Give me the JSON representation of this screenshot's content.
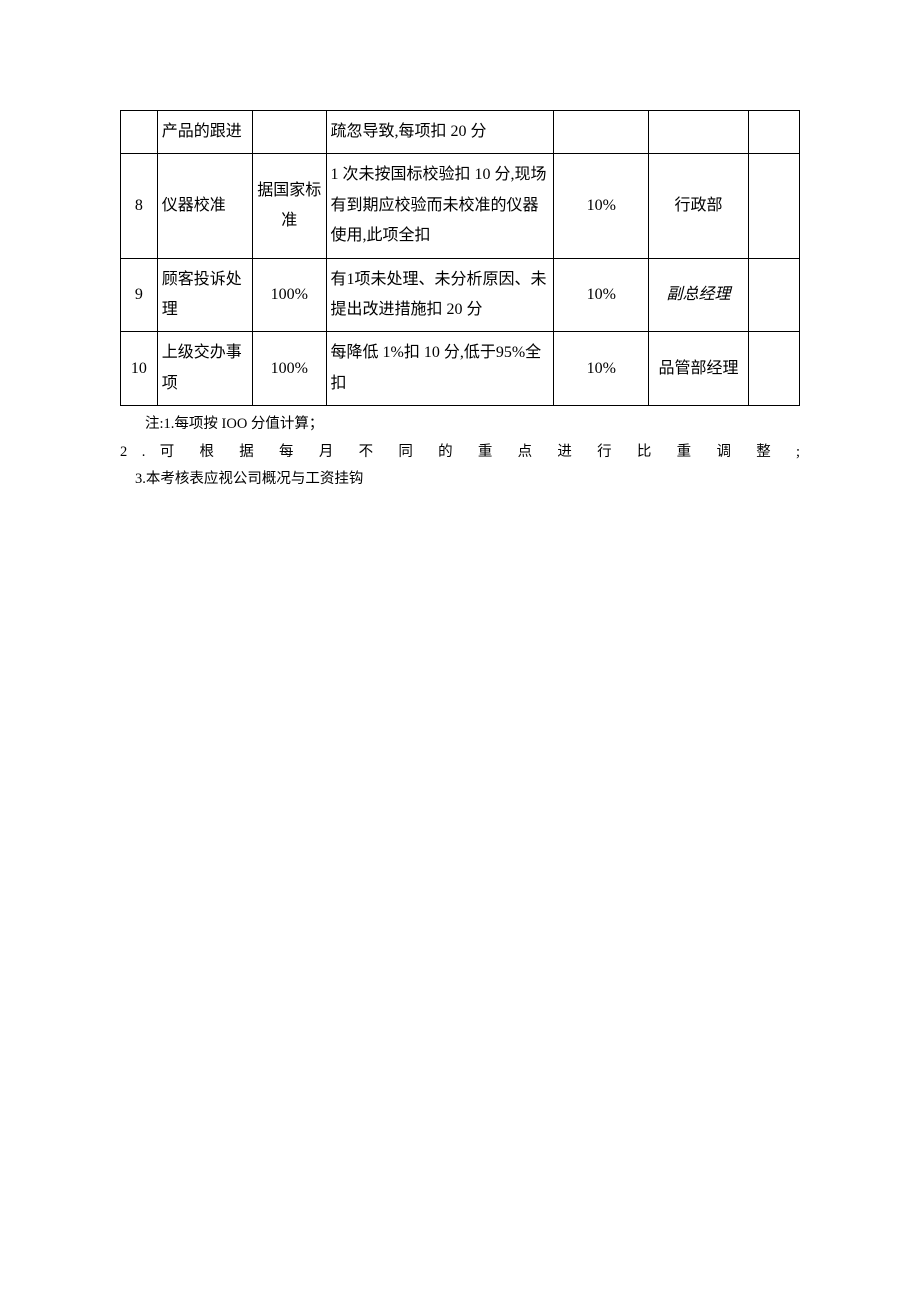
{
  "table": {
    "border_color": "#000000",
    "background_color": "#ffffff",
    "font_size": 16,
    "line_height": 1.9,
    "columns": [
      {
        "key": "num",
        "width_pct": 5,
        "align": "center"
      },
      {
        "key": "item",
        "width_pct": 13,
        "align": "left"
      },
      {
        "key": "target",
        "width_pct": 10,
        "align": "center"
      },
      {
        "key": "criteria",
        "width_pct": 31,
        "align": "left"
      },
      {
        "key": "weight",
        "width_pct": 13,
        "align": "center"
      },
      {
        "key": "responsible",
        "width_pct": 13.5,
        "align": "center"
      },
      {
        "key": "last",
        "width_pct": 7,
        "align": "left"
      }
    ],
    "rows": [
      {
        "num": "",
        "item": "产品的跟进",
        "target": "",
        "criteria": "疏忽导致,每项扣 20 分",
        "weight": "",
        "responsible": "",
        "responsible_italic": false,
        "last": ""
      },
      {
        "num": "8",
        "item": "仪器校准",
        "target": "据国家标准",
        "criteria": "1 次未按国标校验扣 10 分,现场有到期应校验而未校准的仪器使用,此项全扣",
        "weight": "10%",
        "responsible": "行政部",
        "responsible_italic": false,
        "last": ""
      },
      {
        "num": "9",
        "item": "顾客投诉处理",
        "target": "100%",
        "criteria": "有1项未处理、未分析原因、未提出改进措施扣 20 分",
        "weight": "10%",
        "responsible": "副总经理",
        "responsible_italic": true,
        "last": ""
      },
      {
        "num": "10",
        "item": "上级交办事项",
        "target": "100%",
        "criteria": "每降低 1%扣 10 分,低于95%全扣",
        "weight": "10%",
        "responsible": "品管部经理",
        "responsible_italic": false,
        "last": ""
      }
    ]
  },
  "notes": {
    "font_size": 14.5,
    "line1": "注:1.每项按 IOO 分值计算；",
    "line2": "2 . 可 根 据 每 月 不 同 的 重 点 进 行 比 重 调 整 ;",
    "line3": "3.本考核表应视公司概况与工资挂钩"
  }
}
